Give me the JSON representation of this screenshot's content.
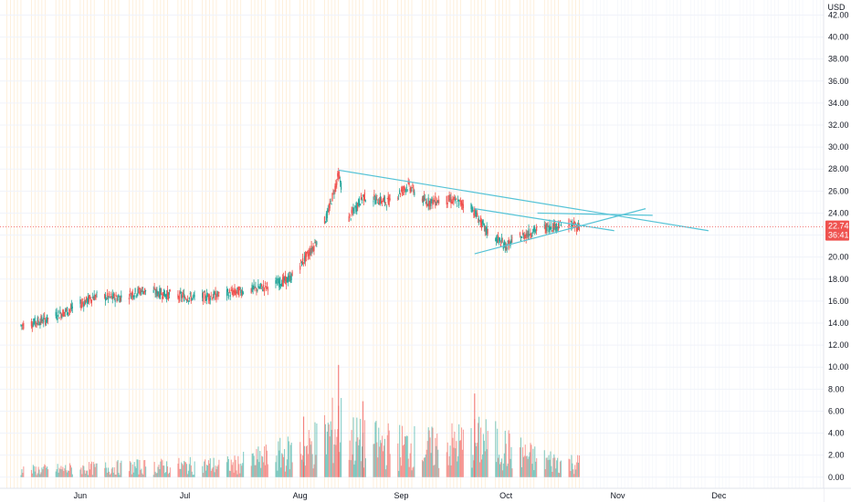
{
  "chart_data": {
    "type": "candlestick",
    "currency": "USD",
    "y_ticks": [
      "42.00",
      "40.00",
      "38.00",
      "36.00",
      "34.00",
      "32.00",
      "30.00",
      "28.00",
      "26.00",
      "24.00",
      "22.00",
      "20.00",
      "18.00",
      "16.00",
      "14.00",
      "12.00",
      "10.00",
      "8.00",
      "6.00",
      "4.00",
      "2.00",
      "0.00"
    ],
    "x_ticks": [
      "Jun",
      "Jul",
      "Aug",
      "Sep",
      "Oct",
      "Nov",
      "Dec"
    ],
    "ylim": [
      -0.6,
      43.2
    ],
    "last_price": "22.74",
    "countdown": "36:41",
    "last_price_value": 22.74,
    "price_path": [
      {
        "date": "2020-05-15",
        "close": 13.8
      },
      {
        "date": "2020-05-22",
        "close": 14.3
      },
      {
        "date": "2020-05-29",
        "close": 15.2
      },
      {
        "date": "2020-06-05",
        "close": 16.4
      },
      {
        "date": "2020-06-12",
        "close": 16.3
      },
      {
        "date": "2020-06-19",
        "close": 17.0
      },
      {
        "date": "2020-06-26",
        "close": 16.6
      },
      {
        "date": "2020-07-03",
        "close": 16.3
      },
      {
        "date": "2020-07-10",
        "close": 16.5
      },
      {
        "date": "2020-07-17",
        "close": 16.9
      },
      {
        "date": "2020-07-24",
        "close": 17.3
      },
      {
        "date": "2020-07-31",
        "close": 18.0
      },
      {
        "date": "2020-08-07",
        "close": 21.0
      },
      {
        "date": "2020-08-11",
        "close": 24.0
      },
      {
        "date": "2020-08-14",
        "close": 27.5
      },
      {
        "date": "2020-08-17",
        "close": 23.5
      },
      {
        "date": "2020-08-21",
        "close": 25.5
      },
      {
        "date": "2020-08-28",
        "close": 25.0
      },
      {
        "date": "2020-09-03",
        "close": 26.5
      },
      {
        "date": "2020-09-08",
        "close": 25.0
      },
      {
        "date": "2020-09-15",
        "close": 25.2
      },
      {
        "date": "2020-09-21",
        "close": 24.6
      },
      {
        "date": "2020-09-25",
        "close": 22.5
      },
      {
        "date": "2020-10-01",
        "close": 21.0
      },
      {
        "date": "2020-10-05",
        "close": 21.8
      },
      {
        "date": "2020-10-09",
        "close": 22.4
      },
      {
        "date": "2020-10-14",
        "close": 22.8
      },
      {
        "date": "2020-10-19",
        "close": 23.0
      },
      {
        "date": "2020-10-22",
        "close": 22.74
      }
    ],
    "volume_path": [
      {
        "date": "2020-05-15",
        "volume": 0.6
      },
      {
        "date": "2020-06-15",
        "volume": 0.9
      },
      {
        "date": "2020-07-15",
        "volume": 1.1
      },
      {
        "date": "2020-08-05",
        "volume": 2.5
      },
      {
        "date": "2020-08-14",
        "volume": 4.5
      },
      {
        "date": "2020-08-20",
        "volume": 3.0
      },
      {
        "date": "2020-09-10",
        "volume": 2.6
      },
      {
        "date": "2020-09-25",
        "volume": 3.2
      },
      {
        "date": "2020-10-10",
        "volume": 1.6
      },
      {
        "date": "2020-10-22",
        "volume": 1.2
      }
    ],
    "volume_spikes": [
      {
        "date": "2020-08-14",
        "volume": 10.2
      },
      {
        "date": "2020-08-21",
        "volume": 6.9
      },
      {
        "date": "2020-09-22",
        "volume": 7.6
      },
      {
        "date": "2020-08-04",
        "volume": 5.5
      }
    ],
    "trendlines": [
      {
        "from": {
          "date": "2020-08-14",
          "price": 27.9
        },
        "to": {
          "date": "2020-11-28",
          "price": 22.4
        }
      },
      {
        "from": {
          "date": "2020-09-22",
          "price": 20.3
        },
        "to": {
          "date": "2020-11-10",
          "price": 24.4
        }
      },
      {
        "from": {
          "date": "2020-09-22",
          "price": 24.4
        },
        "to": {
          "date": "2020-11-01",
          "price": 22.4
        }
      },
      {
        "from": {
          "date": "2020-10-10",
          "price": 24.0
        },
        "to": {
          "date": "2020-11-12",
          "price": 23.8
        }
      }
    ],
    "colors": {
      "up": "#26a69a",
      "down": "#ef5350",
      "trendline": "#56c3d6",
      "grid": "#f0f3fa",
      "session_band": "#fde7c8",
      "price_line": "#ef5350"
    }
  }
}
